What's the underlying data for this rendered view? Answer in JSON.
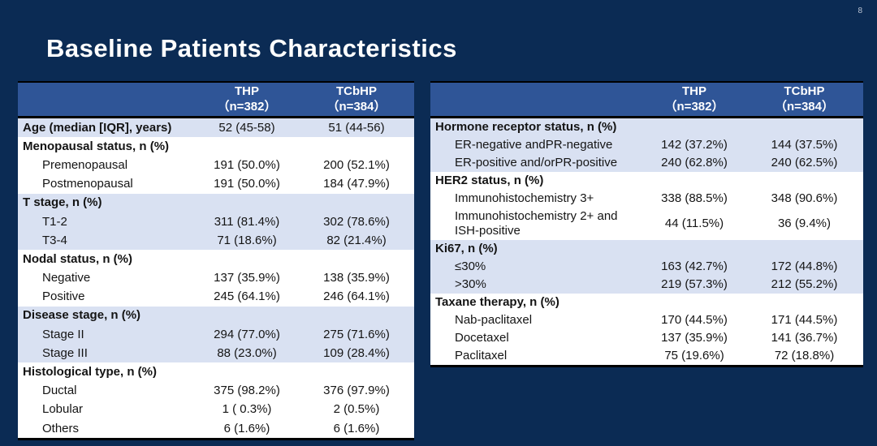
{
  "slide": {
    "title": "Baseline Patients Characteristics",
    "page_number": "8"
  },
  "colors": {
    "background": "#0B2B54",
    "table_header_bg": "#2F5597",
    "row_shade_blue": "#D9E1F2",
    "row_shade_white": "#FFFFFF",
    "header_text": "#FFFFFF",
    "body_text": "#141414",
    "border": "#000000"
  },
  "tables": {
    "left": {
      "columns": [
        {
          "arm": "THP",
          "n": "（n=382）"
        },
        {
          "arm": "TCbHP",
          "n": "（n=384）"
        }
      ],
      "rows": [
        {
          "label": "Age (median [IQR], years)",
          "bold": true,
          "indent": false,
          "thp": "52 (45-58)",
          "tcbhp": "51 (44-56)",
          "shade": "blue"
        },
        {
          "label": "Menopausal status, n (%)",
          "bold": true,
          "indent": false,
          "thp": "",
          "tcbhp": "",
          "shade": "white"
        },
        {
          "label": "Premenopausal",
          "bold": false,
          "indent": true,
          "thp": "191 (50.0%)",
          "tcbhp": "200 (52.1%)",
          "shade": "white"
        },
        {
          "label": "Postmenopausal",
          "bold": false,
          "indent": true,
          "thp": "191 (50.0%)",
          "tcbhp": "184 (47.9%)",
          "shade": "white"
        },
        {
          "label": "T stage, n (%)",
          "bold": true,
          "indent": false,
          "thp": "",
          "tcbhp": "",
          "shade": "blue"
        },
        {
          "label": "T1-2",
          "bold": false,
          "indent": true,
          "thp": "311 (81.4%)",
          "tcbhp": "302 (78.6%)",
          "shade": "blue"
        },
        {
          "label": "T3-4",
          "bold": false,
          "indent": true,
          "thp": "71 (18.6%)",
          "tcbhp": "82 (21.4%)",
          "shade": "blue"
        },
        {
          "label": "Nodal status, n (%)",
          "bold": true,
          "indent": false,
          "thp": "",
          "tcbhp": "",
          "shade": "white"
        },
        {
          "label": "Negative",
          "bold": false,
          "indent": true,
          "thp": "137 (35.9%)",
          "tcbhp": "138 (35.9%)",
          "shade": "white"
        },
        {
          "label": "Positive",
          "bold": false,
          "indent": true,
          "thp": "245 (64.1%)",
          "tcbhp": "246 (64.1%)",
          "shade": "white"
        },
        {
          "label": "Disease stage, n (%)",
          "bold": true,
          "indent": false,
          "thp": "",
          "tcbhp": "",
          "shade": "blue"
        },
        {
          "label": "Stage II",
          "bold": false,
          "indent": true,
          "thp": "294 (77.0%)",
          "tcbhp": "275 (71.6%)",
          "shade": "blue"
        },
        {
          "label": "Stage III",
          "bold": false,
          "indent": true,
          "thp": "88 (23.0%)",
          "tcbhp": "109 (28.4%)",
          "shade": "blue"
        },
        {
          "label": "Histological type, n (%)",
          "bold": true,
          "indent": false,
          "thp": "",
          "tcbhp": "",
          "shade": "white"
        },
        {
          "label": "Ductal",
          "bold": false,
          "indent": true,
          "thp": "375 (98.2%)",
          "tcbhp": "376 (97.9%)",
          "shade": "white"
        },
        {
          "label": "Lobular",
          "bold": false,
          "indent": true,
          "thp": "1 ( 0.3%)",
          "tcbhp": "2 (0.5%)",
          "shade": "white"
        },
        {
          "label": "Others",
          "bold": false,
          "indent": true,
          "thp": "6 (1.6%)",
          "tcbhp": "6 (1.6%)",
          "shade": "white"
        }
      ]
    },
    "right": {
      "columns": [
        {
          "arm": "THP",
          "n": "（n=382）"
        },
        {
          "arm": "TCbHP",
          "n": "（n=384）"
        }
      ],
      "rows": [
        {
          "label": "Hormone receptor status, n (%)",
          "bold": true,
          "indent": false,
          "thp": "",
          "tcbhp": "",
          "shade": "blue"
        },
        {
          "label": "ER-negative andPR-negative",
          "bold": false,
          "indent": true,
          "thp": "142 (37.2%)",
          "tcbhp": "144 (37.5%)",
          "shade": "blue"
        },
        {
          "label": "ER-positive and/orPR-positive",
          "bold": false,
          "indent": true,
          "thp": "240 (62.8%)",
          "tcbhp": "240 (62.5%)",
          "shade": "blue"
        },
        {
          "label": "HER2 status, n (%)",
          "bold": true,
          "indent": false,
          "thp": "",
          "tcbhp": "",
          "shade": "white"
        },
        {
          "label": "Immunohistochemistry 3+",
          "bold": false,
          "indent": true,
          "thp": "338 (88.5%)",
          "tcbhp": "348 (90.6%)",
          "shade": "white"
        },
        {
          "label": "Immunohistochemistry 2+ and\nISH-positive",
          "bold": false,
          "indent": true,
          "thp": "44 (11.5%)",
          "tcbhp": "36 (9.4%)",
          "shade": "white",
          "tall": true
        },
        {
          "label": "Ki67, n (%)",
          "bold": true,
          "indent": false,
          "thp": "",
          "tcbhp": "",
          "shade": "blue"
        },
        {
          "label": "≤30%",
          "bold": false,
          "indent": true,
          "thp": "163 (42.7%)",
          "tcbhp": "172 (44.8%)",
          "shade": "blue"
        },
        {
          "label": ">30%",
          "bold": false,
          "indent": true,
          "thp": "219 (57.3%)",
          "tcbhp": "212 (55.2%)",
          "shade": "blue"
        },
        {
          "label": "Taxane therapy, n (%)",
          "bold": true,
          "indent": false,
          "thp": "",
          "tcbhp": "",
          "shade": "white"
        },
        {
          "label": "Nab-paclitaxel",
          "bold": false,
          "indent": true,
          "thp": "170 (44.5%)",
          "tcbhp": "171 (44.5%)",
          "shade": "white"
        },
        {
          "label": "Docetaxel",
          "bold": false,
          "indent": true,
          "thp": "137 (35.9%)",
          "tcbhp": "141 (36.7%)",
          "shade": "white"
        },
        {
          "label": "Paclitaxel",
          "bold": false,
          "indent": true,
          "thp": "75 (19.6%)",
          "tcbhp": "72 (18.8%)",
          "shade": "white"
        }
      ]
    }
  }
}
